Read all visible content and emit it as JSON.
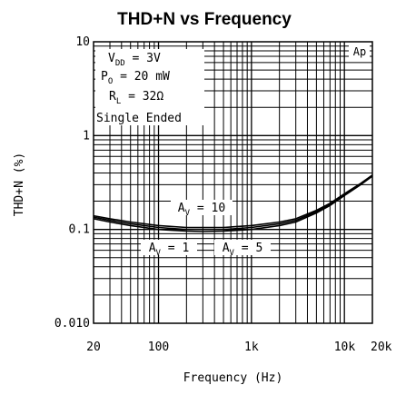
{
  "chart_data": {
    "type": "line",
    "title": "THD+N vs Frequency",
    "xlabel": "Frequency (Hz)",
    "ylabel": "THD+N (%)",
    "x_scale": "log",
    "y_scale": "log",
    "xlim": [
      20,
      20000
    ],
    "ylim": [
      0.01,
      10
    ],
    "grid": true,
    "x_ticks": [
      {
        "value": 20,
        "label": "20"
      },
      {
        "value": 100,
        "label": "100"
      },
      {
        "value": 1000,
        "label": "1k"
      },
      {
        "value": 10000,
        "label": "10k"
      },
      {
        "value": 20000,
        "label": "20k"
      }
    ],
    "y_ticks": [
      {
        "value": 10,
        "label": "10"
      },
      {
        "value": 1,
        "label": "1"
      },
      {
        "value": 0.1,
        "label": "0.1"
      },
      {
        "value": 0.01,
        "label": "0.010"
      }
    ],
    "conditions": {
      "vdd": {
        "sym": "V",
        "sub": "DD",
        "rest": " = 3V"
      },
      "po": {
        "sym": "P",
        "sub": "O",
        "rest": " = 20 mW"
      },
      "rl": {
        "sym": "R",
        "sub": "L",
        "rest": " = 32Ω"
      },
      "mode": "Single Ended"
    },
    "corner_tag": "Ap",
    "series": [
      {
        "name": "AV = 10",
        "label": {
          "sym": "A",
          "sub": "V",
          "rest": " = 10"
        },
        "x": [
          20,
          30,
          50,
          100,
          200,
          300,
          500,
          1000,
          2000,
          3000,
          5000,
          7000,
          10000,
          15000,
          20000
        ],
        "y": [
          0.14,
          0.13,
          0.12,
          0.11,
          0.105,
          0.105,
          0.105,
          0.11,
          0.12,
          0.13,
          0.16,
          0.19,
          0.24,
          0.31,
          0.38
        ]
      },
      {
        "name": "AV = 1",
        "label": {
          "sym": "A",
          "sub": "V",
          "rest": " = 1"
        },
        "x": [
          20,
          30,
          50,
          100,
          200,
          300,
          500,
          1000,
          2000,
          3000,
          5000,
          7000,
          10000,
          15000,
          20000
        ],
        "y": [
          0.13,
          0.12,
          0.11,
          0.1,
          0.096,
          0.095,
          0.096,
          0.1,
          0.11,
          0.12,
          0.15,
          0.18,
          0.23,
          0.3,
          0.37
        ]
      },
      {
        "name": "AV = 5",
        "label": {
          "sym": "A",
          "sub": "V",
          "rest": " = 5"
        },
        "x": [
          20,
          30,
          50,
          100,
          200,
          300,
          500,
          1000,
          2000,
          3000,
          5000,
          7000,
          10000,
          15000,
          20000
        ],
        "y": [
          0.135,
          0.125,
          0.115,
          0.105,
          0.1,
          0.1,
          0.1,
          0.105,
          0.115,
          0.125,
          0.155,
          0.185,
          0.235,
          0.305,
          0.375
        ]
      }
    ]
  }
}
